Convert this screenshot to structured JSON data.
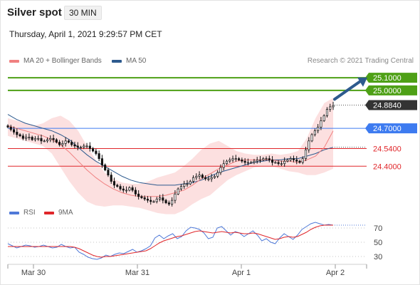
{
  "header": {
    "title": "Silver spot",
    "interval": "30 MIN",
    "timestamp": "Thursday, April 1, 2021 9:29:57 PM CET"
  },
  "legend": {
    "ma20_label": "MA 20 + Bollinger Bands",
    "ma50_label": "MA 50",
    "ma20_color": "#f08080",
    "ma50_color": "#2d5a8e",
    "credit": "Research © 2021 Trading Central"
  },
  "rsi_legend": {
    "rsi_label": "RSI",
    "ma_label": "9MA",
    "rsi_color": "#4f79d8",
    "ma_color": "#e0262a"
  },
  "chart_data": [
    {
      "type": "candlestick",
      "title": "Silver spot",
      "x_tick_labels": [
        "Mar 30",
        "Mar 31",
        "Apr 1",
        "Apr 2"
      ],
      "ylim": [
        24.08,
        25.18
      ],
      "levels": [
        {
          "value": 25.1,
          "label": "25.1000",
          "kind": "target",
          "color": "#4ea016"
        },
        {
          "value": 25.0,
          "label": "25.0000",
          "kind": "target",
          "color": "#4ea016"
        },
        {
          "value": 24.884,
          "label": "24.8840",
          "kind": "last_price",
          "color": "#333333"
        },
        {
          "value": 24.7,
          "label": "24.7000",
          "kind": "pivot",
          "color": "#3d7bf0"
        },
        {
          "value": 24.54,
          "label": "24.5400",
          "kind": "support",
          "color": "#e0262a"
        },
        {
          "value": 24.4,
          "label": "24.4000",
          "kind": "support",
          "color": "#e0262a"
        }
      ],
      "close": [
        24.71,
        24.69,
        24.67,
        24.65,
        24.64,
        24.62,
        24.63,
        24.63,
        24.61,
        24.62,
        24.62,
        24.6,
        24.6,
        24.61,
        24.62,
        24.61,
        24.59,
        24.57,
        24.58,
        24.6,
        24.59,
        24.57,
        24.56,
        24.55,
        24.55,
        24.56,
        24.56,
        24.54,
        24.52,
        24.5,
        24.46,
        24.41,
        24.37,
        24.33,
        24.28,
        24.25,
        24.24,
        24.22,
        24.21,
        24.21,
        24.23,
        24.21,
        24.18,
        24.16,
        24.15,
        24.14,
        24.13,
        24.12,
        24.12,
        24.14,
        24.15,
        24.13,
        24.11,
        24.1,
        24.13,
        24.18,
        24.22,
        24.24,
        24.26,
        24.26,
        24.28,
        24.31,
        24.32,
        24.33,
        24.31,
        24.3,
        24.3,
        24.31,
        24.32,
        24.35,
        24.39,
        24.42,
        24.44,
        24.45,
        24.46,
        24.46,
        24.45,
        24.44,
        24.43,
        24.43,
        24.43,
        24.44,
        24.45,
        24.45,
        24.46,
        24.46,
        24.45,
        24.43,
        24.43,
        24.42,
        24.42,
        24.44,
        24.45,
        24.46,
        24.45,
        24.44,
        24.43,
        24.46,
        24.53,
        24.6,
        24.65,
        24.68,
        24.71,
        24.76,
        24.8,
        24.85,
        24.87,
        24.88
      ],
      "ma20": [
        24.72,
        24.7,
        24.68,
        24.66,
        24.64,
        24.61,
        24.57,
        24.51,
        24.44,
        24.37,
        24.31,
        24.26,
        24.22,
        24.19,
        24.17,
        24.16,
        24.16,
        24.16,
        24.17,
        24.19,
        24.21,
        24.25,
        24.3,
        24.34,
        24.38,
        24.41,
        24.44,
        24.45,
        24.45,
        24.45,
        24.45,
        24.44,
        24.44,
        24.43,
        24.45,
        24.48,
        24.55,
        24.68
      ],
      "ma50": [
        24.81,
        24.77,
        24.74,
        24.72,
        24.7,
        24.68,
        24.65,
        24.61,
        24.55,
        24.49,
        24.44,
        24.4,
        24.36,
        24.32,
        24.29,
        24.27,
        24.26,
        24.25,
        24.25,
        24.25,
        24.26,
        24.27,
        24.29,
        24.32,
        24.35,
        24.37,
        24.39,
        24.41,
        24.43,
        24.44,
        24.45,
        24.45,
        24.46,
        24.46,
        24.48,
        24.5,
        24.53,
        24.55
      ],
      "bollinger_upper": [
        24.78,
        24.76,
        24.74,
        24.72,
        24.74,
        24.78,
        24.8,
        24.76,
        24.68,
        24.56,
        24.45,
        24.35,
        24.3,
        24.27,
        24.26,
        24.26,
        24.28,
        24.31,
        24.33,
        24.35,
        24.4,
        24.46,
        24.53,
        24.58,
        24.6,
        24.56,
        24.52,
        24.5,
        24.49,
        24.49,
        24.5,
        24.49,
        24.5,
        24.52,
        24.62,
        24.78,
        24.9,
        24.94
      ],
      "bollinger_lower": [
        24.64,
        24.62,
        24.6,
        24.58,
        24.56,
        24.5,
        24.39,
        24.28,
        24.19,
        24.12,
        24.09,
        24.08,
        24.09,
        24.09,
        24.08,
        24.07,
        24.05,
        24.03,
        24.02,
        24.02,
        24.05,
        24.1,
        24.14,
        24.17,
        24.23,
        24.29,
        24.33,
        24.36,
        24.39,
        24.4,
        24.4,
        24.38,
        24.36,
        24.35,
        24.33,
        24.33,
        24.35,
        24.38
      ]
    },
    {
      "type": "line",
      "title": "RSI",
      "ylim": [
        20,
        85
      ],
      "y_ticks": [
        70,
        50,
        30
      ],
      "series": [
        {
          "name": "RSI",
          "values": [
            48,
            45,
            42,
            44,
            46,
            45,
            43,
            44,
            46,
            44,
            42,
            43,
            47,
            44,
            42,
            43,
            36,
            33,
            29,
            27,
            26,
            28,
            32,
            30,
            33,
            35,
            34,
            37,
            40,
            36,
            38,
            41,
            45,
            56,
            60,
            55,
            59,
            62,
            55,
            58,
            66,
            71,
            70,
            68,
            63,
            55,
            57,
            70,
            72,
            66,
            60,
            65,
            63,
            58,
            62,
            66,
            60,
            52,
            55,
            50,
            48,
            56,
            62,
            58,
            54,
            60,
            68,
            72,
            76,
            78,
            76,
            74,
            75,
            74
          ]
        },
        {
          "name": "9MA",
          "values": [
            44,
            44,
            44,
            44,
            44,
            44,
            44,
            44,
            44,
            44,
            44,
            44,
            44,
            44,
            44,
            43,
            41,
            38,
            35,
            32,
            30,
            29,
            30,
            30,
            31,
            32,
            33,
            34,
            35,
            36,
            37,
            38,
            41,
            45,
            49,
            52,
            54,
            56,
            58,
            59,
            61,
            63,
            65,
            66,
            65,
            64,
            63,
            64,
            65,
            64,
            63,
            64,
            63,
            62,
            62,
            63,
            62,
            60,
            58,
            56,
            54,
            55,
            57,
            58,
            57,
            58,
            61,
            64,
            68,
            71,
            73,
            74,
            74,
            74
          ]
        }
      ]
    }
  ]
}
